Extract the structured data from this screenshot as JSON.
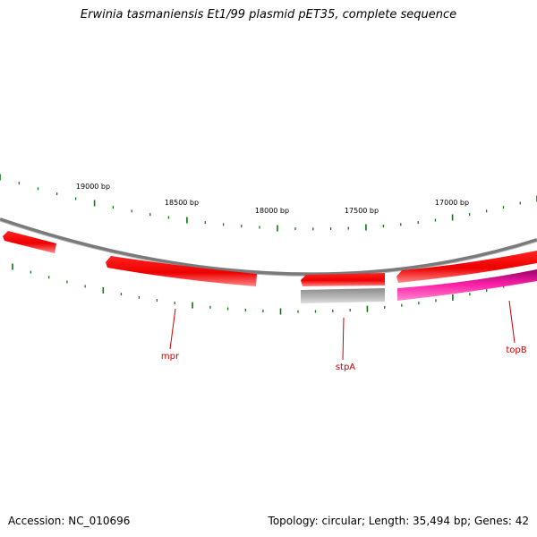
{
  "title": "Erwinia tasmaniensis Et1/99 plasmid pET35, complete sequence",
  "footer": {
    "accession": "Accession: NC_010696",
    "summary": "Topology: circular; Length: 35,494 bp; Genes: 42"
  },
  "scale_labels": [
    "19000 bp",
    "18500 bp",
    "18000 bp",
    "17500 bp",
    "17000 bp"
  ],
  "genes": [
    {
      "name": "mpr",
      "color": "#cc0000"
    },
    {
      "name": "stpA",
      "color": "#cc0000"
    },
    {
      "name": "topB",
      "color": "#cc0000"
    }
  ],
  "colors": {
    "backbone": "#808080",
    "cds": "#ff0000",
    "cds_light": "#ff6666",
    "gene_grey": "#bfbfbf",
    "gene_pink": "#ff33aa",
    "tick": "#0a7a0a",
    "label_line": "#cc0000"
  }
}
